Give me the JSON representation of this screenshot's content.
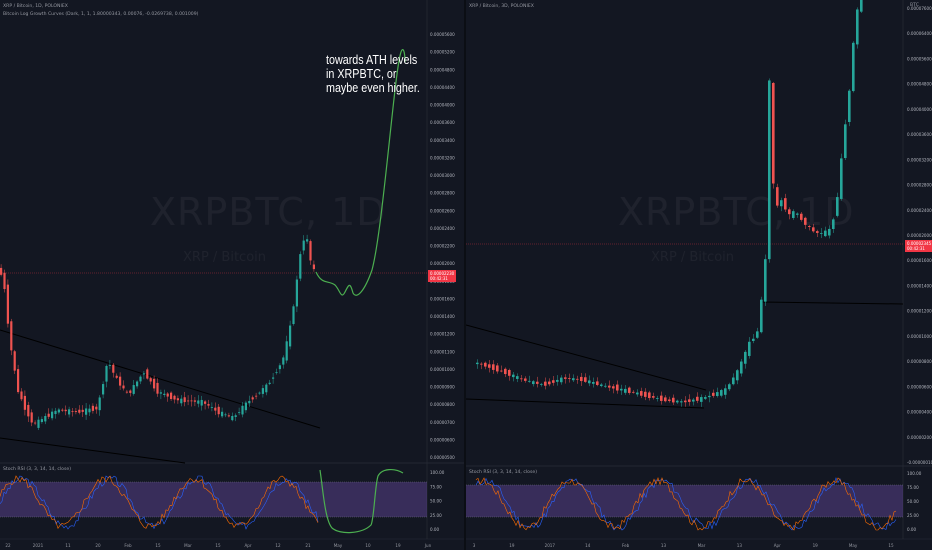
{
  "left": {
    "header": {
      "symbol_line": "XRP / Bitcoin, 1D, POLONIEX",
      "indicator_line": "Bitcoin Log Growth Curves (Dark, 1, 1, 1.80000343, 0.00076, -0.0269738, 0.001009)"
    },
    "watermark": {
      "ticker": "XRPBTC, 1D",
      "name": "XRP / Bitcoin"
    },
    "annotation": "towards ATH levels in XRPBTC, or maybe even higher.",
    "current_price_tag": "0.00002230\n00:42:31",
    "stoch_label": "Stoch RSI (3, 3, 14, 14, close)",
    "price_axis": [
      "0.00005600",
      "0.00005200",
      "0.00004800",
      "0.00004400",
      "0.00004000",
      "0.00003600",
      "0.00003400",
      "0.00003200",
      "0.00003000",
      "0.00002800",
      "0.00002600",
      "0.00002400",
      "0.00002200",
      "0.00002000",
      "0.00001800",
      "0.00001600",
      "0.00001400",
      "0.00001200",
      "0.00001100",
      "0.00001000",
      "0.00000900",
      "0.00000800",
      "0.00000700",
      "0.00000600",
      "0.00000500"
    ],
    "stoch_axis": [
      "100.00",
      "75.00",
      "50.00",
      "25.00",
      "0.00"
    ],
    "date_axis": [
      "22",
      "2021",
      "11",
      "20",
      "Feb",
      "15",
      "Mar",
      "15",
      "Apr",
      "12",
      "21",
      "May",
      "10",
      "19",
      "Jun"
    ]
  },
  "right": {
    "header": {
      "symbol_line": "XRP / Bitcoin, 3D, POLONIEX"
    },
    "watermark": {
      "ticker": "XRPBTC, 1D",
      "name": "XRP / Bitcoin"
    },
    "current_price_tag": "0.00002345\n00:42:31",
    "stoch_label": "Stoch RSI (3, 3, 14, 14, close)",
    "price_axis": [
      "0.00007600",
      "0.00006400",
      "0.00005600",
      "0.00004800",
      "0.00004000",
      "0.00003600",
      "0.00003200",
      "0.00002800",
      "0.00002400",
      "0.00002000",
      "0.00001600",
      "0.00001400",
      "0.00001200",
      "0.00001000",
      "0.00000800",
      "0.00000600",
      "0.00000400",
      "0.00000200",
      "-0.00000010"
    ],
    "top_right_label": "BTC",
    "stoch_axis": [
      "100.00",
      "75.00",
      "50.00",
      "25.00",
      "0.00"
    ],
    "date_axis": [
      "3",
      "19",
      "2017",
      "14",
      "Feb",
      "13",
      "Mar",
      "13",
      "Apr",
      "19",
      "May",
      "15"
    ]
  },
  "colors": {
    "bull": "#26a69a",
    "bear": "#ef5350",
    "background": "#131722",
    "stoch_k": "#2962ff",
    "stoch_d": "#ff6d00",
    "stoch_band": "#7e57c2",
    "drawing": "#4caf50",
    "current_price": "#f23645"
  },
  "chart_data": [
    {
      "type": "candlestick",
      "title": "XRP / Bitcoin, 1D, POLONIEX",
      "notes": "Approximate closes read from the price axis; projected path drawn by hand to ~0.000055 (ATH area).",
      "y_scale": "log",
      "ylim": [
        4.5e-06,
        6e-05
      ],
      "x": [
        "Dec 22",
        "2021",
        "Jan 11",
        "Jan 20",
        "Feb",
        "Feb 15",
        "Mar",
        "Mar 15",
        "Apr",
        "Apr 12",
        "Apr 21",
        "May",
        "May 10",
        "May 19",
        "Jun"
      ],
      "series": [
        {
          "values": [
            2.05e-05,
            7.5e-06,
            6.8e-06,
            8e-06,
            1.15e-05,
            8.5e-06,
            7.2e-06,
            7.8e-06,
            1.25e-05,
            2.5e-05,
            1.95e-05,
            1.9e-05,
            2.1e-05,
            5.5e-05,
            5.5e-05
          ]
        }
      ],
      "grid": false
    },
    {
      "type": "candlestick",
      "title": "XRP / Bitcoin, 3D, POLONIEX",
      "y_scale": "log",
      "ylim": [
        1e-07,
        8e-05
      ],
      "x": [
        "3",
        "19",
        "2017",
        "14",
        "Feb",
        "13",
        "Mar",
        "13",
        "Apr",
        "19",
        "May",
        "15"
      ],
      "series": [
        {
          "values": [
            1.2e-06,
            1.1e-06,
            9e-07,
            9e-07,
            8e-07,
            8e-07,
            6e-07,
            7e-07,
            4.5e-06,
            3.1e-06,
            2.4e-06,
            7.5e-05
          ]
        }
      ],
      "grid": false
    }
  ]
}
